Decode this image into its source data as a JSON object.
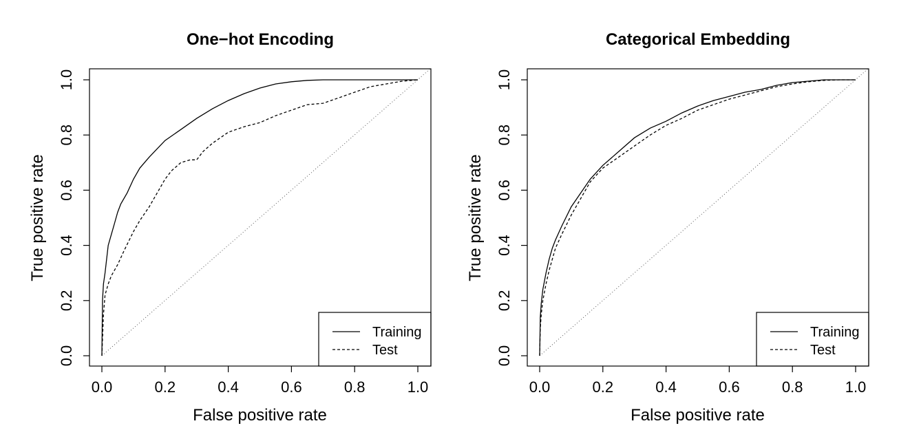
{
  "chart_data": [
    {
      "type": "line",
      "title": "One−hot Encoding",
      "xlabel": "False positive rate",
      "ylabel": "True positive rate",
      "xlim": [
        0,
        1
      ],
      "ylim": [
        0,
        1
      ],
      "xticks": [
        "0.0",
        "0.2",
        "0.4",
        "0.6",
        "0.8",
        "1.0"
      ],
      "yticks": [
        "0.0",
        "0.2",
        "0.4",
        "0.6",
        "0.8",
        "1.0"
      ],
      "legend_position": "bottom-right",
      "reference_line": "diagonal",
      "series": [
        {
          "name": "Training",
          "style": "solid",
          "x": [
            0,
            0.002,
            0.005,
            0.01,
            0.015,
            0.02,
            0.03,
            0.04,
            0.05,
            0.06,
            0.08,
            0.1,
            0.12,
            0.15,
            0.2,
            0.25,
            0.3,
            0.35,
            0.4,
            0.45,
            0.5,
            0.55,
            0.6,
            0.65,
            0.7,
            0.8,
            0.9,
            1.0
          ],
          "y": [
            0,
            0.2,
            0.26,
            0.3,
            0.35,
            0.4,
            0.44,
            0.48,
            0.52,
            0.55,
            0.59,
            0.64,
            0.68,
            0.72,
            0.78,
            0.82,
            0.86,
            0.895,
            0.925,
            0.95,
            0.97,
            0.985,
            0.993,
            0.998,
            1.0,
            1.0,
            1.0,
            1.0
          ]
        },
        {
          "name": "Test",
          "style": "dashed",
          "x": [
            0,
            0.005,
            0.01,
            0.02,
            0.03,
            0.05,
            0.07,
            0.1,
            0.12,
            0.15,
            0.18,
            0.2,
            0.22,
            0.25,
            0.28,
            0.3,
            0.32,
            0.35,
            0.4,
            0.45,
            0.5,
            0.55,
            0.6,
            0.65,
            0.7,
            0.75,
            0.8,
            0.85,
            0.9,
            0.95,
            1.0
          ],
          "y": [
            0,
            0.15,
            0.22,
            0.26,
            0.29,
            0.33,
            0.38,
            0.45,
            0.49,
            0.54,
            0.6,
            0.64,
            0.67,
            0.7,
            0.71,
            0.71,
            0.74,
            0.77,
            0.81,
            0.83,
            0.845,
            0.87,
            0.89,
            0.91,
            0.915,
            0.935,
            0.955,
            0.975,
            0.985,
            0.995,
            1.0
          ]
        }
      ]
    },
    {
      "type": "line",
      "title": "Categorical Embedding",
      "xlabel": "False positive rate",
      "ylabel": "True positive rate",
      "xlim": [
        0,
        1
      ],
      "ylim": [
        0,
        1
      ],
      "xticks": [
        "0.0",
        "0.2",
        "0.4",
        "0.6",
        "0.8",
        "1.0"
      ],
      "yticks": [
        "0.0",
        "0.2",
        "0.4",
        "0.6",
        "0.8",
        "1.0"
      ],
      "legend_position": "bottom-right",
      "reference_line": "diagonal",
      "series": [
        {
          "name": "Training",
          "style": "solid",
          "x": [
            0,
            0.002,
            0.005,
            0.01,
            0.02,
            0.03,
            0.04,
            0.05,
            0.07,
            0.1,
            0.13,
            0.16,
            0.2,
            0.25,
            0.3,
            0.35,
            0.4,
            0.45,
            0.5,
            0.55,
            0.6,
            0.65,
            0.7,
            0.75,
            0.8,
            0.85,
            0.9,
            0.95,
            1.0
          ],
          "y": [
            0,
            0.14,
            0.19,
            0.24,
            0.3,
            0.35,
            0.39,
            0.42,
            0.47,
            0.54,
            0.59,
            0.64,
            0.69,
            0.74,
            0.79,
            0.825,
            0.85,
            0.88,
            0.905,
            0.925,
            0.94,
            0.955,
            0.965,
            0.98,
            0.99,
            0.995,
            1.0,
            1.0,
            1.0
          ]
        },
        {
          "name": "Test",
          "style": "dashed",
          "x": [
            0,
            0.002,
            0.005,
            0.01,
            0.02,
            0.03,
            0.04,
            0.05,
            0.07,
            0.1,
            0.13,
            0.16,
            0.2,
            0.25,
            0.3,
            0.35,
            0.4,
            0.45,
            0.5,
            0.55,
            0.6,
            0.65,
            0.7,
            0.75,
            0.8,
            0.85,
            0.9,
            0.95,
            1.0
          ],
          "y": [
            0,
            0.1,
            0.15,
            0.2,
            0.26,
            0.31,
            0.35,
            0.39,
            0.44,
            0.51,
            0.57,
            0.63,
            0.68,
            0.72,
            0.76,
            0.8,
            0.835,
            0.86,
            0.89,
            0.91,
            0.93,
            0.945,
            0.96,
            0.975,
            0.985,
            0.993,
            0.998,
            1.0,
            1.0
          ]
        }
      ]
    }
  ]
}
